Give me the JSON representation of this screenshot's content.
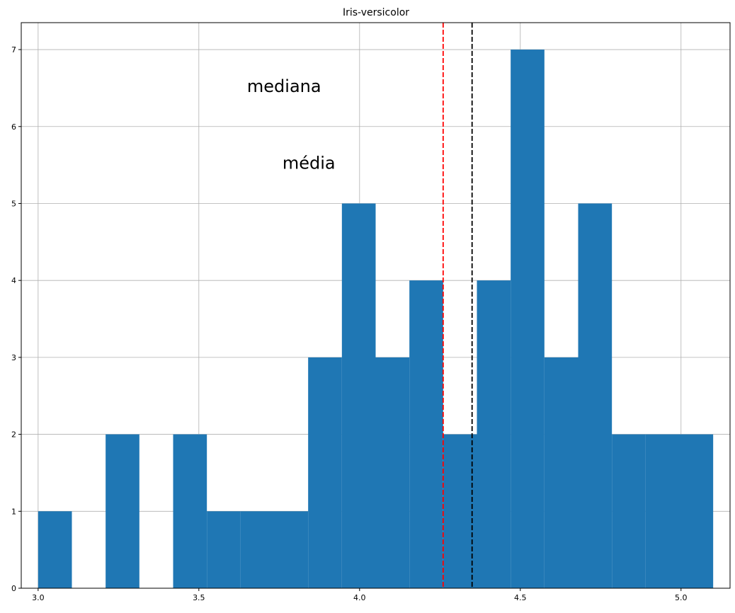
{
  "chart_data": {
    "type": "bar",
    "title": "Iris-versicolor",
    "xlabel": "",
    "ylabel": "",
    "xlim": [
      2.9475,
      5.1525
    ],
    "ylim": [
      0,
      7.35
    ],
    "grid": true,
    "x_ticks": [
      3.0,
      3.5,
      4.0,
      4.5,
      5.0
    ],
    "x_tick_labels": [
      "3.0",
      "3.5",
      "4.0",
      "4.5",
      "5.0"
    ],
    "y_ticks": [
      0,
      1,
      2,
      3,
      4,
      5,
      6,
      7
    ],
    "y_tick_labels": [
      "0",
      "1",
      "2",
      "3",
      "4",
      "5",
      "6",
      "7"
    ],
    "bar_color": "#1f77b4",
    "bins": [
      {
        "start": 3.0,
        "end": 3.105,
        "count": 1
      },
      {
        "start": 3.105,
        "end": 3.21,
        "count": 0
      },
      {
        "start": 3.21,
        "end": 3.315,
        "count": 2
      },
      {
        "start": 3.315,
        "end": 3.42,
        "count": 0
      },
      {
        "start": 3.42,
        "end": 3.525,
        "count": 2
      },
      {
        "start": 3.525,
        "end": 3.63,
        "count": 1
      },
      {
        "start": 3.63,
        "end": 3.735,
        "count": 1
      },
      {
        "start": 3.735,
        "end": 3.84,
        "count": 1
      },
      {
        "start": 3.84,
        "end": 3.945,
        "count": 3
      },
      {
        "start": 3.945,
        "end": 4.05,
        "count": 5
      },
      {
        "start": 4.05,
        "end": 4.155,
        "count": 3
      },
      {
        "start": 4.155,
        "end": 4.26,
        "count": 4
      },
      {
        "start": 4.26,
        "end": 4.365,
        "count": 2
      },
      {
        "start": 4.365,
        "end": 4.47,
        "count": 4
      },
      {
        "start": 4.47,
        "end": 4.575,
        "count": 7
      },
      {
        "start": 4.575,
        "end": 4.68,
        "count": 3
      },
      {
        "start": 4.68,
        "end": 4.785,
        "count": 5
      },
      {
        "start": 4.785,
        "end": 4.89,
        "count": 2
      },
      {
        "start": 4.89,
        "end": 4.995,
        "count": 2
      },
      {
        "start": 4.995,
        "end": 5.1,
        "count": 2
      }
    ],
    "reference_lines": [
      {
        "name": "mean",
        "x": 4.26,
        "color": "#ff0000",
        "style": "dashed"
      },
      {
        "name": "median",
        "x": 4.35,
        "color": "#000000",
        "style": "dashed"
      }
    ],
    "annotations": [
      {
        "text": "mediana",
        "x": 3.65,
        "y": 6.45
      },
      {
        "text": "média",
        "x": 3.76,
        "y": 5.45
      }
    ]
  }
}
